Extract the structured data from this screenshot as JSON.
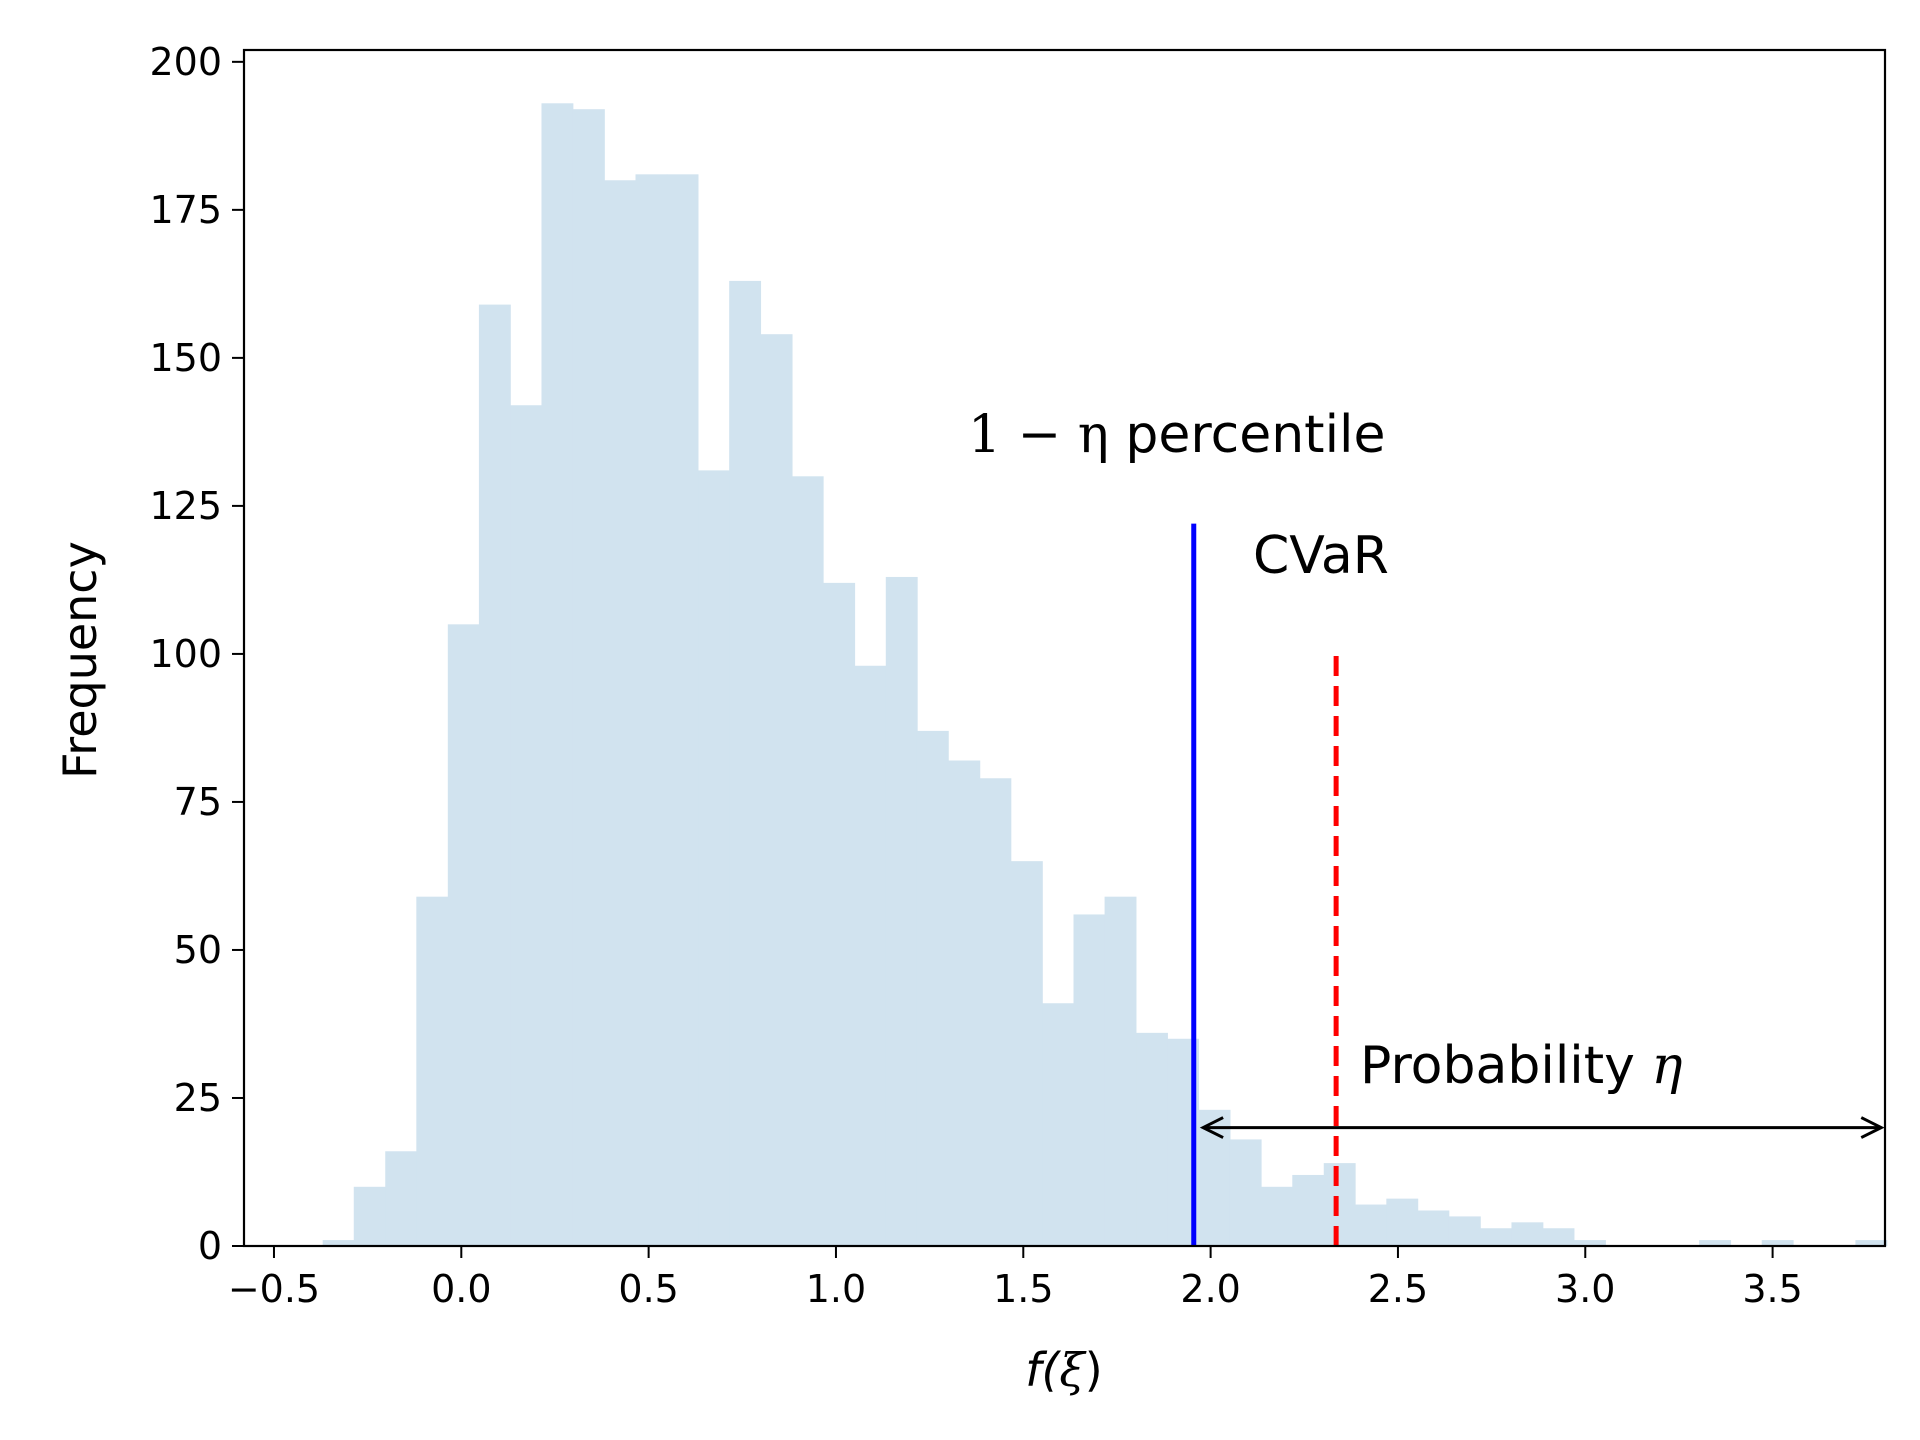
{
  "chart_data": {
    "type": "bar",
    "xlabel_main": "f(",
    "xlabel_var": "ξ",
    "xlabel_close": ")",
    "ylabel": "Frequency",
    "xlim": [
      -0.58,
      3.8
    ],
    "ylim": [
      0,
      202
    ],
    "xticks": [
      -0.5,
      0.0,
      0.5,
      1.0,
      1.5,
      2.0,
      2.5,
      3.0,
      3.5
    ],
    "xtick_labels": [
      "−0.5",
      "0.0",
      "0.5",
      "1.0",
      "1.5",
      "2.0",
      "2.5",
      "3.0",
      "3.5"
    ],
    "yticks": [
      0,
      25,
      50,
      75,
      100,
      125,
      150,
      175,
      200
    ],
    "ytick_labels": [
      "0",
      "25",
      "50",
      "75",
      "100",
      "125",
      "150",
      "175",
      "200"
    ],
    "histogram": {
      "color": "#d1e3ef",
      "bin_width": 0.0835,
      "bin_starts": [
        -0.37,
        -0.287,
        -0.203,
        -0.12,
        -0.036,
        0.047,
        0.131,
        0.214,
        0.298,
        0.381,
        0.465,
        0.548,
        0.632,
        0.715,
        0.799,
        0.882,
        0.966,
        1.049,
        1.133,
        1.216,
        1.3,
        1.383,
        1.467,
        1.55,
        1.634,
        1.717,
        1.801,
        1.884,
        1.968,
        2.051,
        2.135,
        2.218,
        2.302,
        2.385,
        2.469,
        2.552,
        2.636,
        2.719,
        2.803,
        2.886,
        2.97,
        3.053,
        3.137,
        3.22,
        3.304,
        3.387,
        3.471,
        3.554,
        3.638,
        3.721
      ],
      "counts": [
        1,
        10,
        16,
        59,
        105,
        159,
        142,
        193,
        192,
        180,
        181,
        181,
        131,
        163,
        154,
        130,
        112,
        98,
        113,
        87,
        82,
        79,
        65,
        41,
        56,
        59,
        36,
        35,
        23,
        18,
        10,
        12,
        14,
        7,
        8,
        6,
        5,
        3,
        4,
        3,
        1,
        0,
        0,
        0,
        1,
        0,
        1,
        0,
        0,
        1
      ]
    },
    "percentile_line": {
      "x": 1.955,
      "y_top": 122,
      "color": "#0000ff"
    },
    "cvar_line": {
      "x": 2.335,
      "y_top": 100,
      "color": "#ff0000"
    },
    "arrow": {
      "x_start": 1.98,
      "x_end": 3.79,
      "y": 20
    }
  },
  "annotations": {
    "percentile_math": "1 − η",
    "percentile_text": " percentile",
    "cvar": "CVaR",
    "prob_text": "Probability ",
    "prob_math": "η"
  }
}
